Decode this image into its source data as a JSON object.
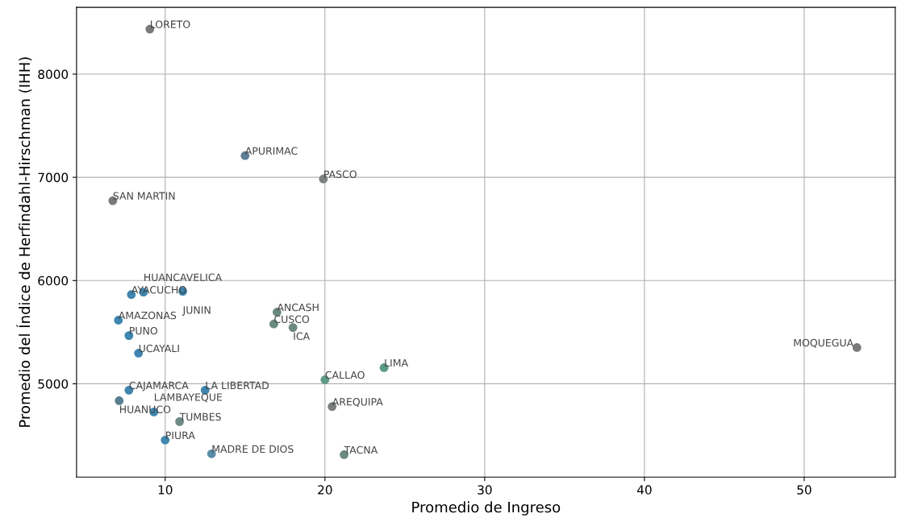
{
  "chart_data": {
    "type": "scatter",
    "xlabel": "Promedio de Ingreso",
    "ylabel": "Promedio del Índice de Herfindahl-Hirschman (IHH)",
    "x": [
      9.04,
      15.0,
      19.9,
      6.72,
      7.88,
      8.64,
      11.1,
      7.07,
      7.73,
      8.33,
      17.0,
      16.8,
      18.0,
      20.0,
      7.73,
      7.12,
      12.5,
      9.29,
      10.9,
      10.0,
      12.9,
      20.45,
      21.2,
      23.7,
      53.3
    ],
    "values": [
      8436,
      7210,
      6984,
      6774,
      5864,
      5888,
      5896,
      5616,
      5467,
      5296,
      5694,
      5579,
      5545,
      5039,
      4938,
      4836,
      4938,
      4727,
      4634,
      4455,
      4322,
      4779,
      4313,
      5156,
      5351
    ],
    "colors": [
      "#7a7a7a",
      "#5f7f96",
      "#7d8080",
      "#7a7a7a",
      "#3f86b0",
      "#3f86b0",
      "#3b82ac",
      "#3f86b0",
      "#3f86b0",
      "#3f86b0",
      "#6a8a80",
      "#6a8a80",
      "#6a8a80",
      "#5f9a86",
      "#3f86b0",
      "#5a7f93",
      "#3f86b0",
      "#3f86b0",
      "#6e8a84",
      "#3f86b0",
      "#5a8ca8",
      "#7a7e7e",
      "#6a8a80",
      "#5a9a8a",
      "#7a7a7a"
    ],
    "marker": "circle",
    "grid": true,
    "xlim": [
      4.45,
      55.7
    ],
    "ylim": [
      4096,
      8647
    ],
    "xticks": [
      10,
      20,
      30,
      40,
      50
    ],
    "yticks": [
      5000,
      6000,
      7000,
      8000
    ],
    "annotations": [
      {
        "text": "LORETO",
        "x": 9.04,
        "y": 8436
      },
      {
        "text": "APURIMAC",
        "x": 15.0,
        "y": 7210
      },
      {
        "text": "PASCO",
        "x": 19.9,
        "y": 6984
      },
      {
        "text": "SAN MARTIN",
        "x": 6.72,
        "y": 6774
      },
      {
        "text": "AYACUCHO",
        "x": 7.88,
        "y": 5864
      },
      {
        "text": "HUANCAVELICA",
        "x": 8.64,
        "y": 5888
      },
      {
        "text": "JUNIN",
        "x": 11.1,
        "y": 5896
      },
      {
        "text": "AMAZONAS",
        "x": 7.07,
        "y": 5616
      },
      {
        "text": "PUNO",
        "x": 7.73,
        "y": 5467
      },
      {
        "text": "UCAYALI",
        "x": 8.33,
        "y": 5296
      },
      {
        "text": "ANCASH",
        "x": 17.0,
        "y": 5694
      },
      {
        "text": "CUSCO",
        "x": 16.8,
        "y": 5579
      },
      {
        "text": "ICA",
        "x": 18.0,
        "y": 5545
      },
      {
        "text": "CALLAO",
        "x": 20.0,
        "y": 5039
      },
      {
        "text": "CAJAMARCA",
        "x": 7.73,
        "y": 4938
      },
      {
        "text": "HUANUCO",
        "x": 7.12,
        "y": 4836
      },
      {
        "text": "LA LIBERTAD",
        "x": 12.5,
        "y": 4938
      },
      {
        "text": "LAMBAYEQUE",
        "x": 9.29,
        "y": 4727
      },
      {
        "text": "TUMBES",
        "x": 10.9,
        "y": 4634
      },
      {
        "text": "PIURA",
        "x": 10.0,
        "y": 4455
      },
      {
        "text": "MADRE DE DIOS",
        "x": 12.9,
        "y": 4322
      },
      {
        "text": "AREQUIPA",
        "x": 20.45,
        "y": 4779
      },
      {
        "text": "TACNA",
        "x": 21.2,
        "y": 4313
      },
      {
        "text": "LIMA",
        "x": 23.7,
        "y": 5156
      },
      {
        "text": "MOQUEGUA",
        "x": 53.3,
        "y": 5351
      }
    ]
  }
}
